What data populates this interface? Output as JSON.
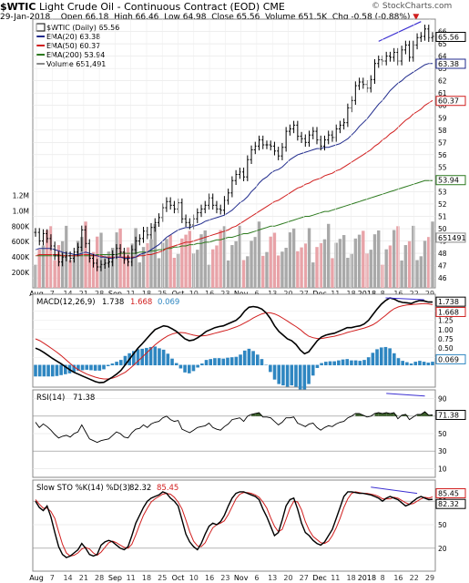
{
  "header": {
    "symbol": "$WTIC",
    "name": "Light Crude Oil - Continuous Contract (EOD)",
    "exchange": "CME",
    "date": "29-Jan-2018",
    "open": "Open 66.18",
    "high": "High 66.46",
    "low": "Low 64.98",
    "close": "Close 65.56",
    "volume": "Volume 651.5K",
    "chg": "Chg -0.58 (-0.88%)",
    "chg_arrow": "▼",
    "brand": "© StockCharts.com"
  },
  "colors": {
    "price": "#000000",
    "ema20": "#1f2a8c",
    "ema50": "#d11f1f",
    "ema200": "#2d7a1f",
    "vol_up": "#a9a9a9",
    "vol_down": "#e8a3a8",
    "macd_hist": "#2e86c1",
    "rsi_fill": "#3b5e2b",
    "divergence": "#3b2fd1",
    "badge": "#1f2a8c"
  },
  "chart_data": [
    {
      "type": "line",
      "panel": "price",
      "legend": [
        "$WTIC (Daily) 65.56",
        "EMA(20) 63.38",
        "EMA(50) 60.37",
        "EMA(200) 53.94",
        "Volume 651,491"
      ],
      "x_tick_labels": [
        "Aug",
        "7",
        "14",
        "21",
        "28",
        "Sep",
        "11",
        "18",
        "25",
        "Oct",
        "10",
        "16",
        "23",
        "Nov",
        "6",
        "13",
        "20",
        "27",
        "Dec",
        "11",
        "18",
        "2018",
        "8",
        "16",
        "22",
        "29"
      ],
      "y_ticks": [
        46,
        47,
        48,
        49,
        50,
        51,
        52,
        53,
        54,
        55,
        56,
        57,
        58,
        59,
        60,
        61,
        62,
        63,
        64,
        65,
        66
      ],
      "ylim": [
        45.2,
        67.0
      ],
      "badges": [
        "65.56",
        "63.38",
        "60.37",
        "53.94",
        "651491"
      ],
      "series": [
        {
          "values": [
            49.7,
            49.0,
            49.6,
            49.2,
            48.6,
            47.8,
            47.3,
            47.7,
            47.8,
            47.6,
            48.1,
            48.5,
            49.9,
            48.8,
            47.6,
            47.2,
            46.9,
            47.1,
            47.2,
            47.3,
            47.9,
            48.4,
            48.1,
            47.5,
            47.3,
            48.3,
            49.0,
            49.2,
            49.8,
            49.5,
            50.1,
            50.5,
            50.9,
            51.7,
            52.2,
            51.9,
            51.6,
            52.1,
            50.8,
            50.5,
            50.3,
            50.8,
            51.3,
            51.6,
            51.9,
            52.5,
            51.9,
            51.6,
            51.5,
            52.3,
            52.9,
            53.9,
            54.4,
            54.6,
            54.2,
            55.6,
            56.4,
            56.7,
            57.2,
            56.8,
            56.8,
            56.7,
            56.3,
            55.9,
            56.6,
            57.9,
            58.1,
            58.4,
            57.5,
            57.3,
            57.0,
            57.6,
            57.9,
            57.2,
            56.7,
            57.2,
            57.6,
            57.4,
            58.1,
            58.4,
            58.6,
            59.8,
            60.4,
            61.6,
            61.9,
            61.7,
            61.4,
            62.1,
            63.4,
            63.7,
            63.6,
            64.0,
            63.9,
            64.3,
            63.6,
            64.5,
            64.9,
            63.9,
            64.9,
            65.5,
            65.6,
            66.2,
            65.5,
            65.6
          ]
        },
        {
          "name": "EMA(20)",
          "values": [
            48.3,
            48.4,
            48.4,
            48.4,
            48.4,
            48.3,
            48.2,
            48.1,
            48.0,
            48.0,
            47.9,
            47.9,
            48.0,
            48.1,
            48.0,
            47.9,
            47.8,
            47.7,
            47.7,
            47.6,
            47.6,
            47.7,
            47.7,
            47.6,
            47.6,
            47.6,
            47.7,
            47.9,
            48.0,
            48.1,
            48.3,
            48.5,
            48.7,
            49.0,
            49.3,
            49.5,
            49.7,
            49.9,
            50.0,
            50.1,
            50.1,
            50.2,
            50.3,
            50.4,
            50.6,
            50.7,
            50.8,
            50.9,
            51.0,
            51.1,
            51.3,
            51.5,
            51.8,
            52.1,
            52.3,
            52.6,
            53.0,
            53.3,
            53.7,
            54.0,
            54.2,
            54.5,
            54.7,
            54.8,
            55.0,
            55.3,
            55.6,
            55.8,
            56.0,
            56.1,
            56.2,
            56.3,
            56.4,
            56.5,
            56.5,
            56.6,
            56.6,
            56.7,
            56.8,
            56.9,
            57.1,
            57.3,
            57.6,
            57.9,
            58.3,
            58.6,
            58.9,
            59.3,
            59.7,
            60.1,
            60.4,
            60.8,
            61.2,
            61.5,
            61.8,
            62.0,
            62.3,
            62.5,
            62.7,
            62.9,
            63.1,
            63.3,
            63.4,
            63.4
          ]
        },
        {
          "name": "EMA(50)",
          "values": [
            47.8,
            47.9,
            47.9,
            47.9,
            47.9,
            47.9,
            47.9,
            47.8,
            47.8,
            47.8,
            47.8,
            47.8,
            47.9,
            47.9,
            47.9,
            47.8,
            47.8,
            47.8,
            47.7,
            47.7,
            47.7,
            47.7,
            47.7,
            47.7,
            47.7,
            47.7,
            47.7,
            47.8,
            47.8,
            47.9,
            47.9,
            48.0,
            48.1,
            48.2,
            48.4,
            48.5,
            48.6,
            48.7,
            48.8,
            48.9,
            48.9,
            49.0,
            49.1,
            49.2,
            49.3,
            49.4,
            49.5,
            49.6,
            49.7,
            49.8,
            49.9,
            50.1,
            50.2,
            50.4,
            50.6,
            50.8,
            51.0,
            51.2,
            51.4,
            51.6,
            51.8,
            52.0,
            52.2,
            52.3,
            52.5,
            52.7,
            52.9,
            53.1,
            53.3,
            53.4,
            53.6,
            53.7,
            53.9,
            54.0,
            54.1,
            54.3,
            54.4,
            54.5,
            54.7,
            54.8,
            55.0,
            55.2,
            55.4,
            55.6,
            55.8,
            56.0,
            56.2,
            56.4,
            56.7,
            56.9,
            57.2,
            57.4,
            57.7,
            57.9,
            58.2,
            58.5,
            58.8,
            59.0,
            59.3,
            59.5,
            59.7,
            60.0,
            60.2,
            60.4
          ]
        },
        {
          "name": "EMA(200)",
          "values": [
            47.8,
            47.8,
            47.8,
            47.8,
            47.8,
            47.8,
            47.8,
            47.8,
            47.8,
            47.8,
            47.8,
            47.8,
            47.8,
            47.8,
            47.8,
            47.8,
            47.9,
            47.9,
            47.9,
            47.9,
            47.9,
            47.9,
            48.0,
            48.0,
            48.0,
            48.0,
            48.0,
            48.1,
            48.1,
            48.1,
            48.2,
            48.2,
            48.3,
            48.3,
            48.4,
            48.4,
            48.5,
            48.5,
            48.6,
            48.6,
            48.7,
            48.7,
            48.8,
            48.8,
            48.9,
            48.9,
            49.0,
            49.1,
            49.1,
            49.2,
            49.3,
            49.3,
            49.4,
            49.5,
            49.6,
            49.6,
            49.7,
            49.8,
            49.9,
            50.0,
            50.1,
            50.2,
            50.2,
            50.3,
            50.4,
            50.5,
            50.6,
            50.7,
            50.8,
            50.9,
            51.0,
            51.0,
            51.1,
            51.2,
            51.3,
            51.4,
            51.4,
            51.5,
            51.6,
            51.7,
            51.8,
            51.9,
            52.0,
            52.1,
            52.2,
            52.3,
            52.4,
            52.5,
            52.6,
            52.7,
            52.8,
            52.9,
            53.0,
            53.1,
            53.2,
            53.3,
            53.4,
            53.5,
            53.6,
            53.7,
            53.8,
            53.9,
            53.9,
            53.9
          ]
        }
      ],
      "volume_axis": [
        "1.2M",
        "1.0M",
        "800K",
        "600K",
        "400K",
        "200K"
      ]
    },
    {
      "type": "line",
      "panel": "MACD",
      "legend": [
        "MACD(12,26,9)",
        "1.738",
        "1.668",
        "0.069"
      ],
      "y_ticks": [
        1.5,
        1.25,
        1.0,
        0.75,
        0.5,
        0.25
      ],
      "ylim": [
        -0.55,
        1.95
      ],
      "badges": [
        "1.738",
        "1.668",
        "0.069"
      ],
      "macd": [
        0.5,
        0.45,
        0.38,
        0.3,
        0.22,
        0.15,
        0.08,
        0.0,
        -0.08,
        -0.15,
        -0.2,
        -0.25,
        -0.3,
        -0.35,
        -0.4,
        -0.43,
        -0.42,
        -0.35,
        -0.28,
        -0.2,
        -0.1,
        0.05,
        0.2,
        0.35,
        0.5,
        0.62,
        0.75,
        0.88,
        1.0,
        1.05,
        1.1,
        1.08,
        1.02,
        0.95,
        0.85,
        0.75,
        0.7,
        0.72,
        0.78,
        0.86,
        0.95,
        1.0,
        1.05,
        1.08,
        1.1,
        1.15,
        1.2,
        1.25,
        1.35,
        1.5,
        1.6,
        1.62,
        1.6,
        1.55,
        1.45,
        1.3,
        1.1,
        0.95,
        0.85,
        0.75,
        0.7,
        0.6,
        0.45,
        0.35,
        0.4,
        0.55,
        0.7,
        0.8,
        0.85,
        0.88,
        0.9,
        0.95,
        1.0,
        1.05,
        1.05,
        1.08,
        1.1,
        1.15,
        1.25,
        1.4,
        1.55,
        1.68,
        1.78,
        1.85,
        1.82,
        1.76,
        1.73,
        1.72,
        1.7,
        1.75,
        1.78,
        1.77,
        1.74,
        1.74
      ],
      "signal": [
        0.75,
        0.7,
        0.63,
        0.55,
        0.47,
        0.39,
        0.3,
        0.2,
        0.1,
        0.0,
        -0.08,
        -0.14,
        -0.2,
        -0.24,
        -0.28,
        -0.31,
        -0.33,
        -0.33,
        -0.31,
        -0.27,
        -0.21,
        -0.15,
        -0.06,
        0.04,
        0.15,
        0.26,
        0.37,
        0.48,
        0.59,
        0.68,
        0.76,
        0.83,
        0.88,
        0.91,
        0.92,
        0.91,
        0.88,
        0.85,
        0.83,
        0.83,
        0.84,
        0.87,
        0.9,
        0.93,
        0.96,
        0.99,
        1.03,
        1.07,
        1.12,
        1.18,
        1.24,
        1.31,
        1.37,
        1.42,
        1.45,
        1.45,
        1.42,
        1.37,
        1.3,
        1.23,
        1.15,
        1.08,
        1.0,
        0.9,
        0.82,
        0.78,
        0.76,
        0.76,
        0.78,
        0.8,
        0.82,
        0.85,
        0.88,
        0.92,
        0.95,
        0.98,
        1.01,
        1.04,
        1.08,
        1.13,
        1.2,
        1.29,
        1.38,
        1.48,
        1.56,
        1.61,
        1.64,
        1.66,
        1.67,
        1.68,
        1.69,
        1.7,
        1.69,
        1.67
      ]
    },
    {
      "type": "area",
      "panel": "RSI",
      "legend": [
        "RSI(14)",
        "71.38"
      ],
      "y_ticks": [
        90,
        70,
        50,
        30,
        10
      ],
      "ylim": [
        0,
        100
      ],
      "badges": [
        "71.38"
      ],
      "values": [
        63,
        57,
        61,
        58,
        54,
        49,
        45,
        47,
        48,
        46,
        50,
        52,
        60,
        52,
        44,
        42,
        40,
        42,
        43,
        44,
        48,
        52,
        50,
        46,
        45,
        51,
        55,
        56,
        60,
        57,
        61,
        63,
        64,
        68,
        70,
        66,
        64,
        65,
        55,
        53,
        51,
        54,
        57,
        58,
        59,
        62,
        57,
        55,
        54,
        58,
        61,
        66,
        67,
        68,
        64,
        70,
        72,
        73,
        74,
        69,
        69,
        68,
        64,
        60,
        63,
        68,
        68,
        69,
        62,
        60,
        58,
        61,
        62,
        57,
        54,
        57,
        59,
        58,
        61,
        63,
        64,
        68,
        70,
        73,
        73,
        71,
        69,
        70,
        73,
        74,
        73,
        74,
        73,
        74,
        67,
        71,
        72,
        66,
        69,
        72,
        72,
        75,
        71,
        71.4
      ]
    },
    {
      "type": "line",
      "panel": "Slow STO",
      "legend": [
        "Slow STO %K(14) %D(3)",
        "82.32",
        "85.45"
      ],
      "y_ticks": [
        80,
        50,
        20
      ],
      "ylim": [
        0,
        100
      ],
      "badges": [
        "85.45",
        "82.32"
      ],
      "k": [
        80,
        72,
        68,
        74,
        60,
        40,
        22,
        12,
        8,
        10,
        14,
        18,
        26,
        20,
        12,
        10,
        12,
        24,
        28,
        30,
        28,
        24,
        20,
        18,
        22,
        36,
        52,
        62,
        72,
        80,
        84,
        86,
        88,
        92,
        90,
        84,
        80,
        74,
        56,
        38,
        28,
        22,
        18,
        26,
        38,
        48,
        52,
        50,
        54,
        62,
        74,
        84,
        90,
        92,
        92,
        90,
        88,
        86,
        82,
        70,
        60,
        48,
        36,
        40,
        56,
        74,
        82,
        84,
        70,
        52,
        40,
        36,
        30,
        26,
        24,
        28,
        36,
        44,
        58,
        72,
        86,
        92,
        92,
        91,
        90,
        90,
        89,
        88,
        86,
        84,
        80,
        84,
        86,
        84,
        82,
        78,
        74,
        76,
        80,
        84,
        86,
        84,
        82,
        82.3
      ],
      "d": [
        82,
        76,
        71,
        71,
        67,
        58,
        41,
        25,
        14,
        10,
        11,
        14,
        19,
        21,
        19,
        14,
        11,
        15,
        21,
        27,
        29,
        27,
        24,
        21,
        20,
        25,
        37,
        50,
        62,
        71,
        79,
        83,
        86,
        89,
        90,
        89,
        85,
        79,
        70,
        56,
        41,
        29,
        23,
        22,
        27,
        37,
        46,
        50,
        52,
        55,
        63,
        73,
        83,
        89,
        91,
        91,
        90,
        88,
        85,
        79,
        71,
        59,
        48,
        41,
        44,
        57,
        71,
        80,
        79,
        69,
        54,
        43,
        35,
        31,
        27,
        26,
        29,
        36,
        46,
        58,
        72,
        83,
        90,
        92,
        91,
        90,
        90,
        89,
        88,
        86,
        83,
        83,
        83,
        85,
        84,
        81,
        78,
        76,
        77,
        80,
        83,
        85,
        84,
        85.5
      ]
    }
  ]
}
